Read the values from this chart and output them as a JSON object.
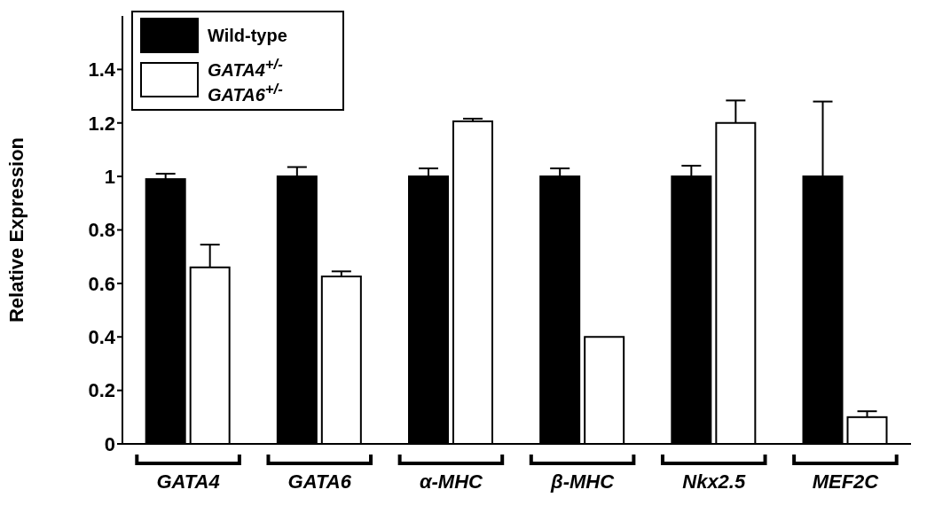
{
  "chart_data": {
    "type": "bar",
    "ylabel": "Relative Expression",
    "categories": [
      "GATA4",
      "GATA6",
      "α-MHC",
      "β-MHC",
      "Nkx2.5",
      "MEF2C"
    ],
    "series": [
      {
        "name": "Wild-type",
        "color": "#000000",
        "values": [
          0.99,
          1.0,
          1.0,
          1.0,
          1.0,
          1.0
        ],
        "errors": [
          [
            0.99,
            1.01
          ],
          [
            1.0,
            1.035
          ],
          [
            1.0,
            1.03
          ],
          [
            1.0,
            1.03
          ],
          [
            1.0,
            1.04
          ],
          [
            1.0,
            1.28
          ]
        ]
      },
      {
        "name": "GATA4$^{+/-}$ GATA6$^{+/-}$",
        "color": "#ffffff",
        "values": [
          0.66,
          0.626,
          1.206,
          0.4,
          1.2,
          0.1
        ],
        "errors": [
          [
            0.66,
            0.745
          ],
          [
            0.626,
            0.645
          ],
          [
            1.206,
            1.216
          ],
          null,
          [
            1.2,
            1.284
          ],
          [
            0.1,
            0.122
          ]
        ]
      }
    ],
    "ylim": [
      0,
      1.6
    ],
    "yticks": [
      0,
      0.2,
      0.4,
      0.6,
      0.8,
      1,
      1.2,
      1.4
    ],
    "grid": false,
    "legend": "top left"
  }
}
